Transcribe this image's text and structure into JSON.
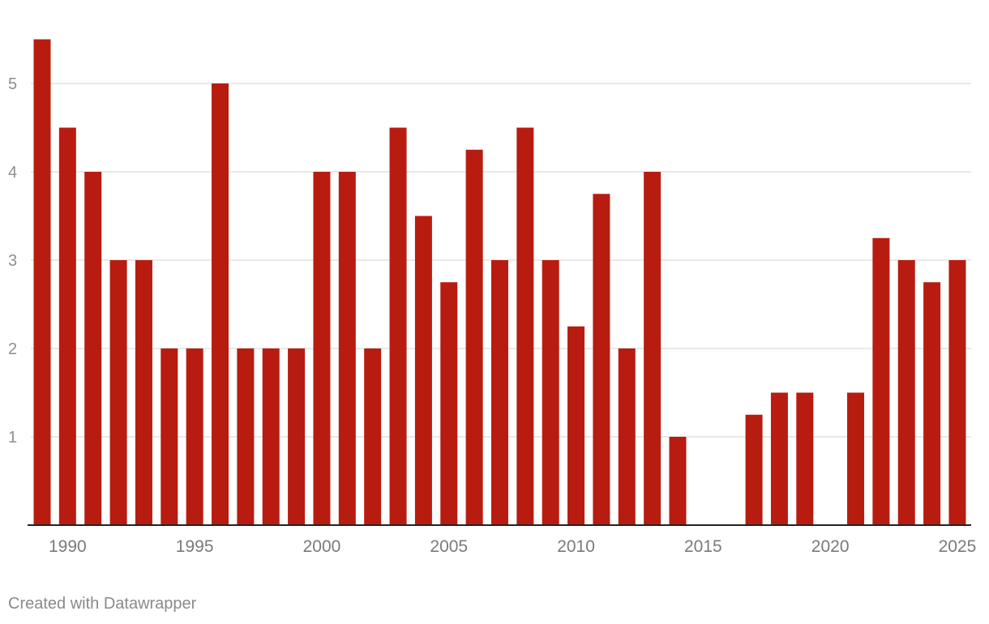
{
  "chart_data": {
    "type": "bar",
    "x": [
      1989,
      1990,
      1991,
      1992,
      1993,
      1994,
      1995,
      1996,
      1997,
      1998,
      1999,
      2000,
      2001,
      2002,
      2003,
      2004,
      2005,
      2006,
      2007,
      2008,
      2009,
      2010,
      2011,
      2012,
      2013,
      2014,
      2015,
      2016,
      2017,
      2018,
      2019,
      2020,
      2021,
      2022,
      2023,
      2024,
      2025
    ],
    "values": [
      5.5,
      4.5,
      4,
      3,
      3,
      2,
      2,
      5,
      2,
      2,
      2,
      4,
      4,
      2,
      4.5,
      3.5,
      2.75,
      4.25,
      3,
      4.5,
      3,
      2.25,
      3.75,
      2,
      4,
      1,
      0,
      0,
      1.25,
      1.5,
      1.5,
      0,
      1.5,
      3.25,
      3,
      2.75,
      3
    ],
    "x_tick_labels": [
      "1990",
      "1995",
      "2000",
      "2005",
      "2010",
      "2015",
      "2020",
      "2025"
    ],
    "y_tick_labels": [
      "1",
      "2",
      "3",
      "4",
      "5"
    ],
    "ylim": [
      0,
      5.5
    ],
    "grid": true,
    "bar_color": "#b81c10",
    "title": "",
    "xlabel": "",
    "ylabel": ""
  },
  "footer": {
    "credit": "Created with Datawrapper"
  }
}
